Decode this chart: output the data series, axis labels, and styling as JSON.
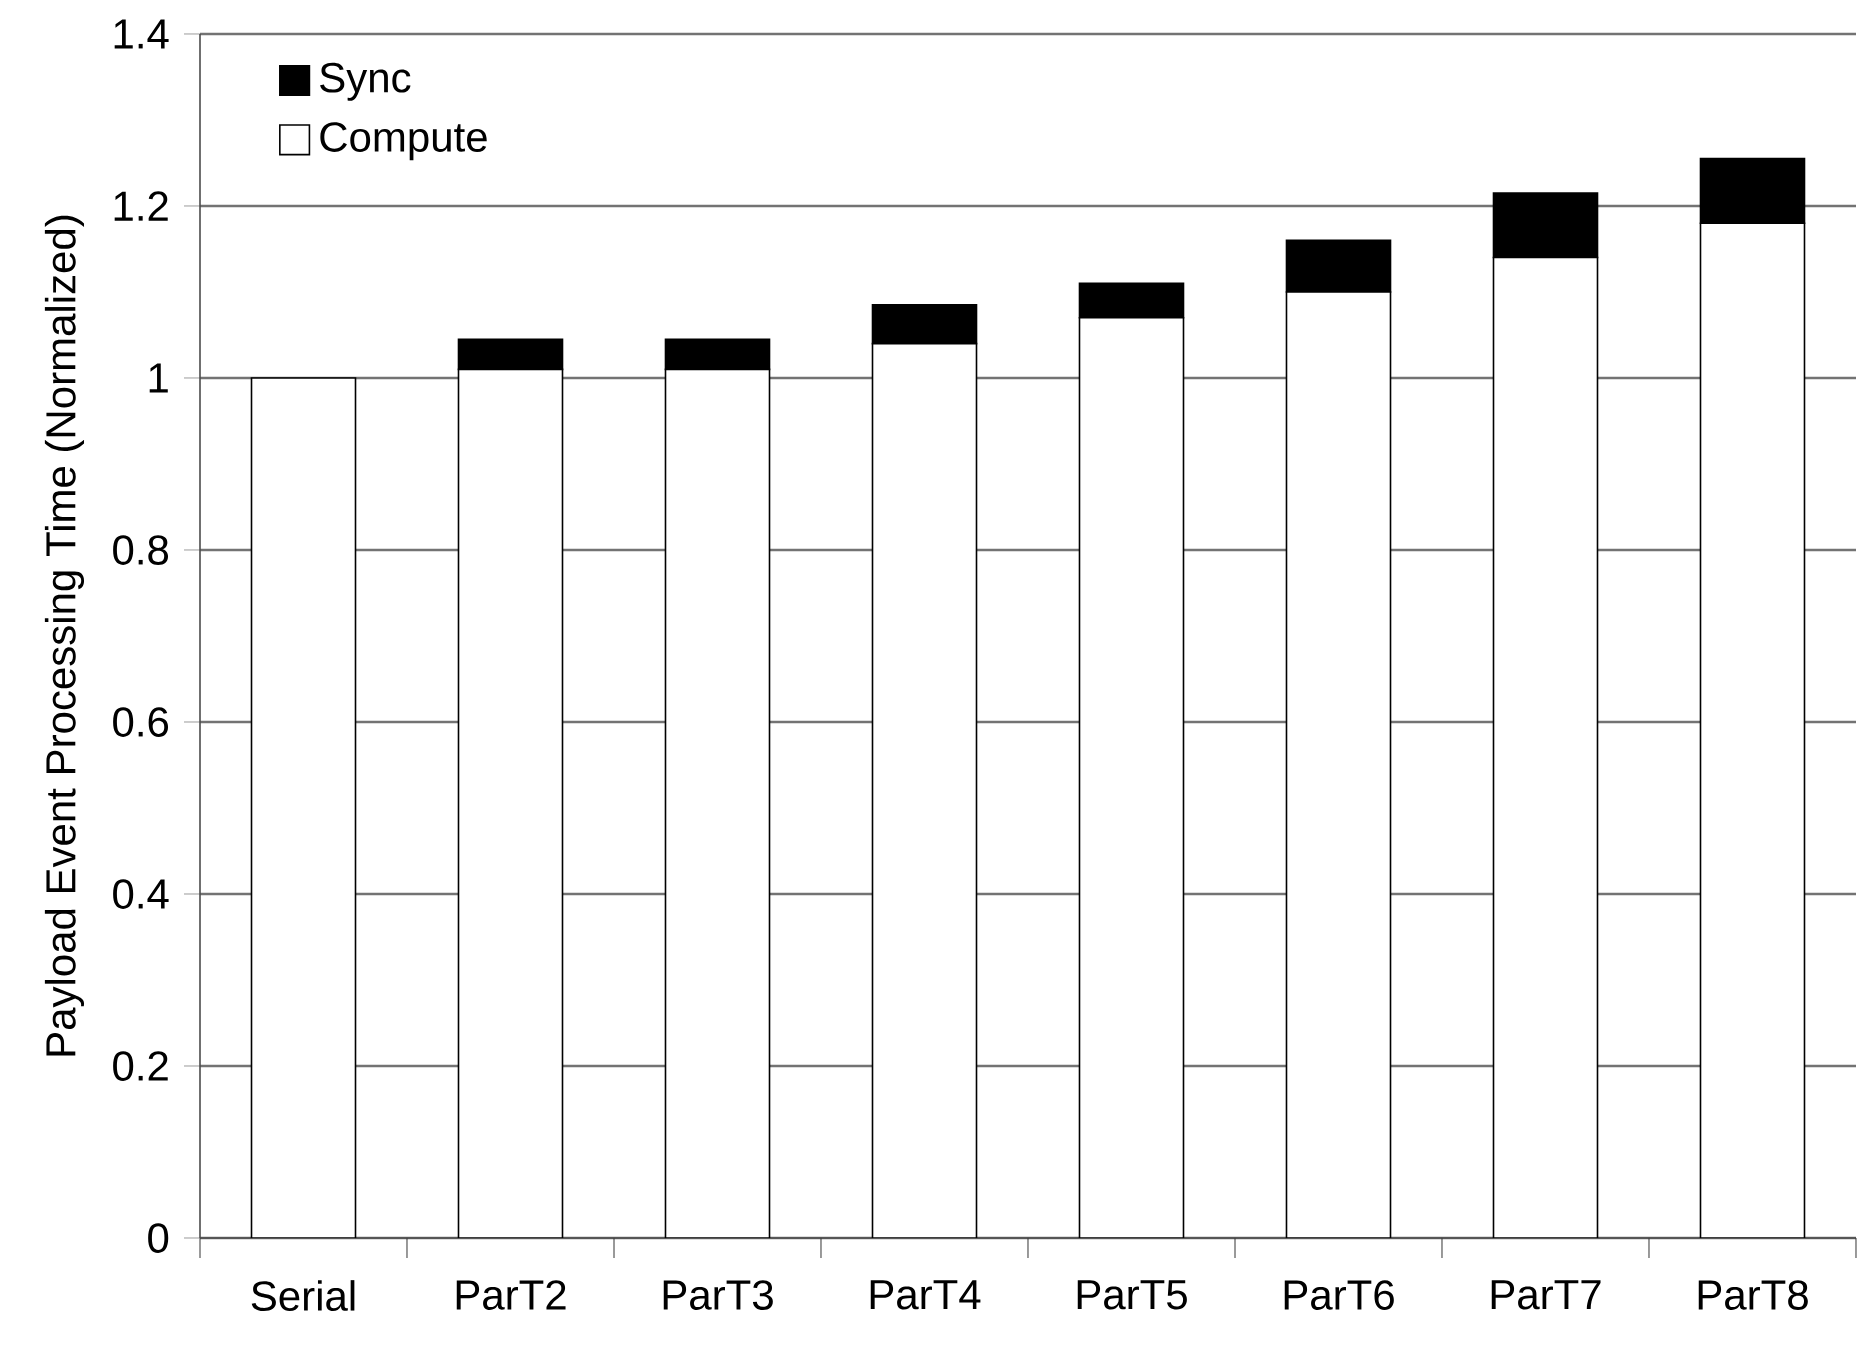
{
  "chart_data": {
    "type": "bar",
    "stacked": true,
    "ylabel": "Payload Event Processing Time (Normalized)",
    "categories": [
      "Serial",
      "ParT2",
      "ParT3",
      "ParT4",
      "ParT5",
      "ParT6",
      "ParT7",
      "ParT8"
    ],
    "series": [
      {
        "name": "Compute",
        "color": "#ffffff",
        "values": [
          1,
          1.01,
          1.01,
          1.04,
          1.07,
          1.1,
          1.14,
          1.18
        ]
      },
      {
        "name": "Sync",
        "color": "#000000",
        "values": [
          0,
          0.035,
          0.035,
          0.045,
          0.04,
          0.06,
          0.075,
          0.075
        ]
      }
    ],
    "ylim": [
      0,
      1.4
    ],
    "yticks": [
      0,
      0.2,
      0.4,
      0.6,
      0.8,
      1,
      1.2,
      1.4
    ],
    "grid": "y",
    "legend": "top left"
  }
}
